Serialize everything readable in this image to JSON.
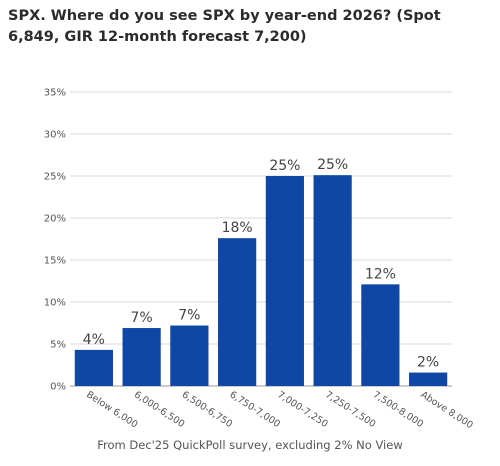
{
  "title": "SPX. Where do you see SPX by year-end 2026? (Spot 6,849, GIR 12-month forecast 7,200)",
  "footnote": "From Dec'25 QuickPoll survey, excluding 2% No View",
  "colors": {
    "bar": "#0f47a6",
    "grid": "#d9d9d9",
    "axis": "#999999"
  },
  "chart_data": {
    "type": "bar",
    "title": "SPX. Where do you see SPX by year-end 2026? (Spot 6,849, GIR 12-month forecast 7,200)",
    "categories": [
      "Below 6,000",
      "6,000-6,500",
      "6,500-6,750",
      "6,750-7,000",
      "7,000-7,250",
      "7,250-7,500",
      "7,500-8,000",
      "Above 8,000"
    ],
    "values": [
      4.3,
      6.9,
      7.2,
      17.6,
      25,
      25.1,
      12.1,
      1.6
    ],
    "data_labels": [
      "4%",
      "7%",
      "7%",
      "18%",
      "25%",
      "25%",
      "12%",
      "2%"
    ],
    "ylim": [
      0,
      35
    ],
    "yticks": [
      0,
      5,
      10,
      15,
      20,
      25,
      30,
      35
    ],
    "ytick_labels": [
      "0%",
      "5%",
      "10%",
      "15%",
      "20%",
      "25%",
      "30%",
      "35%"
    ],
    "grid": true,
    "xlabel": "",
    "ylabel": ""
  }
}
